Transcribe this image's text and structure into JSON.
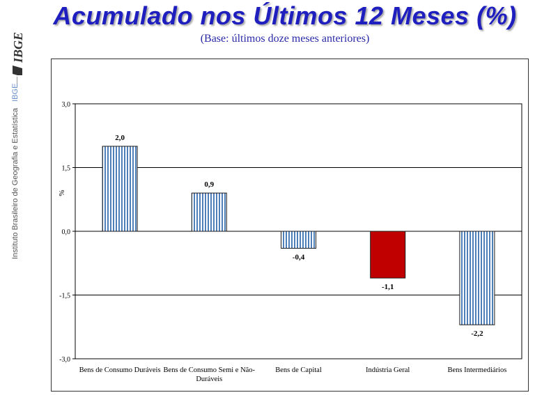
{
  "header": {
    "title": "Acumulado nos Últimos 12 Meses (%)",
    "subtitle": "(Base: últimos doze meses anteriores)"
  },
  "sidebar": {
    "logo_text": "IBGE",
    "org_name": "Instituto Brasileiro de Geografia e Estatística",
    "org_abbr": "IBGE"
  },
  "colors": {
    "title": "#1f1fbf",
    "bar_stripe_blue": "#4f7fb8",
    "bar_highlight_red": "#c00000"
  },
  "chart_data": {
    "type": "bar",
    "title": "",
    "xlabel": "",
    "ylabel": "%",
    "ylim": [
      -3.0,
      3.0
    ],
    "yticks": [
      3.0,
      1.5,
      0.0,
      -1.5,
      -3.0
    ],
    "ytick_labels": [
      "3,0",
      "1,5",
      "0,0",
      "-1,5",
      "-3,0"
    ],
    "grid": true,
    "legend": "none",
    "categories": [
      "Bens de Consumo Duráveis",
      "Bens de Consumo Semi e Não-Duráveis",
      "Bens de Capital",
      "Indústria Geral",
      "Bens Intermediários"
    ],
    "category_lines": [
      [
        "Bens de Consumo Duráveis"
      ],
      [
        "Bens de Consumo Semi e Não-",
        "Duráveis"
      ],
      [
        "Bens de Capital"
      ],
      [
        "Indústria Geral"
      ],
      [
        "Bens Intermediários"
      ]
    ],
    "values": [
      2.0,
      0.9,
      -0.4,
      -1.1,
      -2.2
    ],
    "value_labels": [
      "2,0",
      "0,9",
      "-0,4",
      "-1,1",
      "-2,2"
    ],
    "bar_styles": [
      "striped",
      "striped",
      "striped",
      "solid-red",
      "striped"
    ]
  }
}
